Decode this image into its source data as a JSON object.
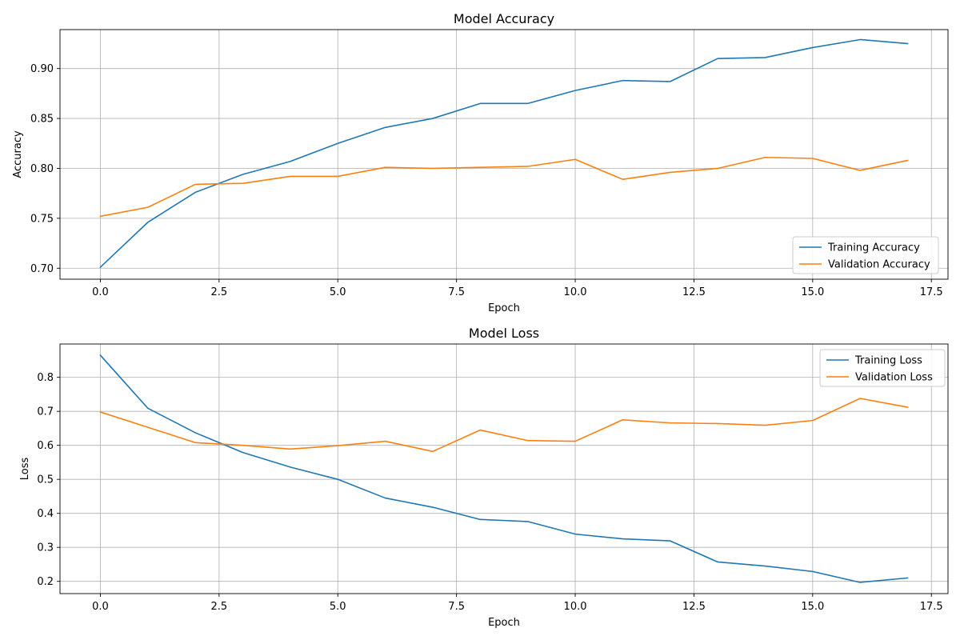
{
  "colors": {
    "training": "#1f77b4",
    "validation": "#ff7f0e",
    "grid": "#b0b0b0",
    "axes": "#000000"
  },
  "chart_data": [
    {
      "type": "line",
      "title": "Model Accuracy",
      "xlabel": "Epoch",
      "ylabel": "Accuracy",
      "xlim": [
        -0.85,
        17.85
      ],
      "ylim": [
        0.689,
        0.939
      ],
      "xticks": [
        0.0,
        2.5,
        5.0,
        7.5,
        10.0,
        12.5,
        15.0,
        17.5
      ],
      "xtick_labels": [
        "0.0",
        "2.5",
        "5.0",
        "7.5",
        "10.0",
        "12.5",
        "15.0",
        "17.5"
      ],
      "yticks": [
        0.7,
        0.75,
        0.8,
        0.85,
        0.9
      ],
      "ytick_labels": [
        "0.70",
        "0.75",
        "0.80",
        "0.85",
        "0.90"
      ],
      "grid": true,
      "legend": "lower-right",
      "x": [
        0,
        1,
        2,
        3,
        4,
        5,
        6,
        7,
        8,
        9,
        10,
        11,
        12,
        13,
        14,
        15,
        16,
        17
      ],
      "series": [
        {
          "name": "Training Accuracy",
          "color": "#1f77b4",
          "values": [
            0.701,
            0.746,
            0.776,
            0.794,
            0.807,
            0.825,
            0.841,
            0.85,
            0.865,
            0.865,
            0.878,
            0.888,
            0.887,
            0.91,
            0.911,
            0.921,
            0.929,
            0.925
          ]
        },
        {
          "name": "Validation Accuracy",
          "color": "#ff7f0e",
          "values": [
            0.752,
            0.761,
            0.784,
            0.785,
            0.792,
            0.792,
            0.801,
            0.8,
            0.801,
            0.802,
            0.809,
            0.789,
            0.796,
            0.8,
            0.811,
            0.81,
            0.798,
            0.808
          ]
        }
      ]
    },
    {
      "type": "line",
      "title": "Model Loss",
      "xlabel": "Epoch",
      "ylabel": "Loss",
      "xlim": [
        -0.85,
        17.85
      ],
      "ylim": [
        0.164,
        0.898
      ],
      "xticks": [
        0.0,
        2.5,
        5.0,
        7.5,
        10.0,
        12.5,
        15.0,
        17.5
      ],
      "xtick_labels": [
        "0.0",
        "2.5",
        "5.0",
        "7.5",
        "10.0",
        "12.5",
        "15.0",
        "17.5"
      ],
      "yticks": [
        0.2,
        0.3,
        0.4,
        0.5,
        0.6,
        0.7,
        0.8
      ],
      "ytick_labels": [
        "0.2",
        "0.3",
        "0.4",
        "0.5",
        "0.6",
        "0.7",
        "0.8"
      ],
      "grid": true,
      "legend": "upper-right",
      "x": [
        0,
        1,
        2,
        3,
        4,
        5,
        6,
        7,
        8,
        9,
        10,
        11,
        12,
        13,
        14,
        15,
        16,
        17
      ],
      "series": [
        {
          "name": "Training Loss",
          "color": "#1f77b4",
          "values": [
            0.865,
            0.709,
            0.637,
            0.579,
            0.536,
            0.5,
            0.445,
            0.418,
            0.382,
            0.376,
            0.339,
            0.325,
            0.319,
            0.257,
            0.245,
            0.229,
            0.197,
            0.21
          ]
        },
        {
          "name": "Validation Loss",
          "color": "#ff7f0e",
          "values": [
            0.698,
            0.653,
            0.608,
            0.6,
            0.589,
            0.599,
            0.612,
            0.582,
            0.645,
            0.614,
            0.612,
            0.675,
            0.666,
            0.664,
            0.659,
            0.673,
            0.738,
            0.712
          ]
        }
      ]
    }
  ]
}
